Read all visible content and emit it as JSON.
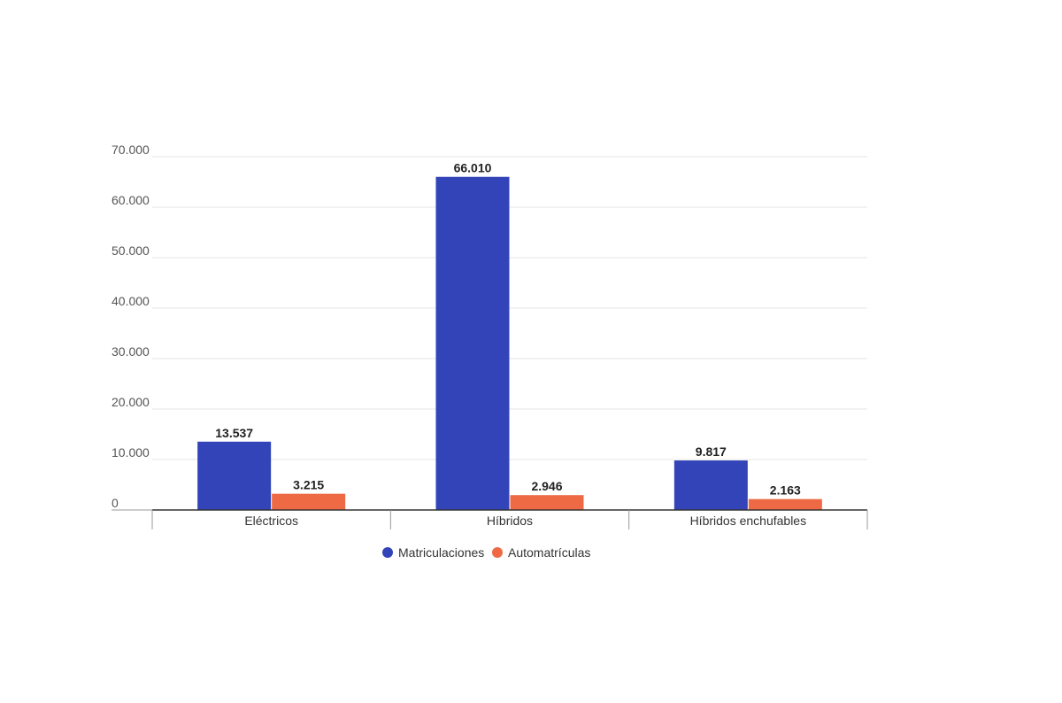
{
  "chart_data": {
    "type": "bar",
    "categories": [
      "Eléctricos",
      "Híbridos",
      "Híbridos enchufables"
    ],
    "series": [
      {
        "name": "Matriculaciones",
        "values": [
          13537,
          66010,
          9817
        ],
        "labels": [
          "13.537",
          "66.010",
          "9.817"
        ],
        "color": "#3344b8"
      },
      {
        "name": "Automatrículas",
        "values": [
          3215,
          2946,
          2163
        ],
        "labels": [
          "3.215",
          "2.946",
          "2.163"
        ],
        "color": "#ee6a45"
      }
    ],
    "y_ticks": [
      0,
      10000,
      20000,
      30000,
      40000,
      50000,
      60000,
      70000
    ],
    "y_tick_labels": [
      "0",
      "10.000",
      "20.000",
      "30.000",
      "40.000",
      "50.000",
      "60.000",
      "70.000"
    ],
    "ylim": [
      0,
      70000
    ],
    "grid": true,
    "legend_position": "bottom-center",
    "title": "",
    "xlabel": "",
    "ylabel": ""
  }
}
